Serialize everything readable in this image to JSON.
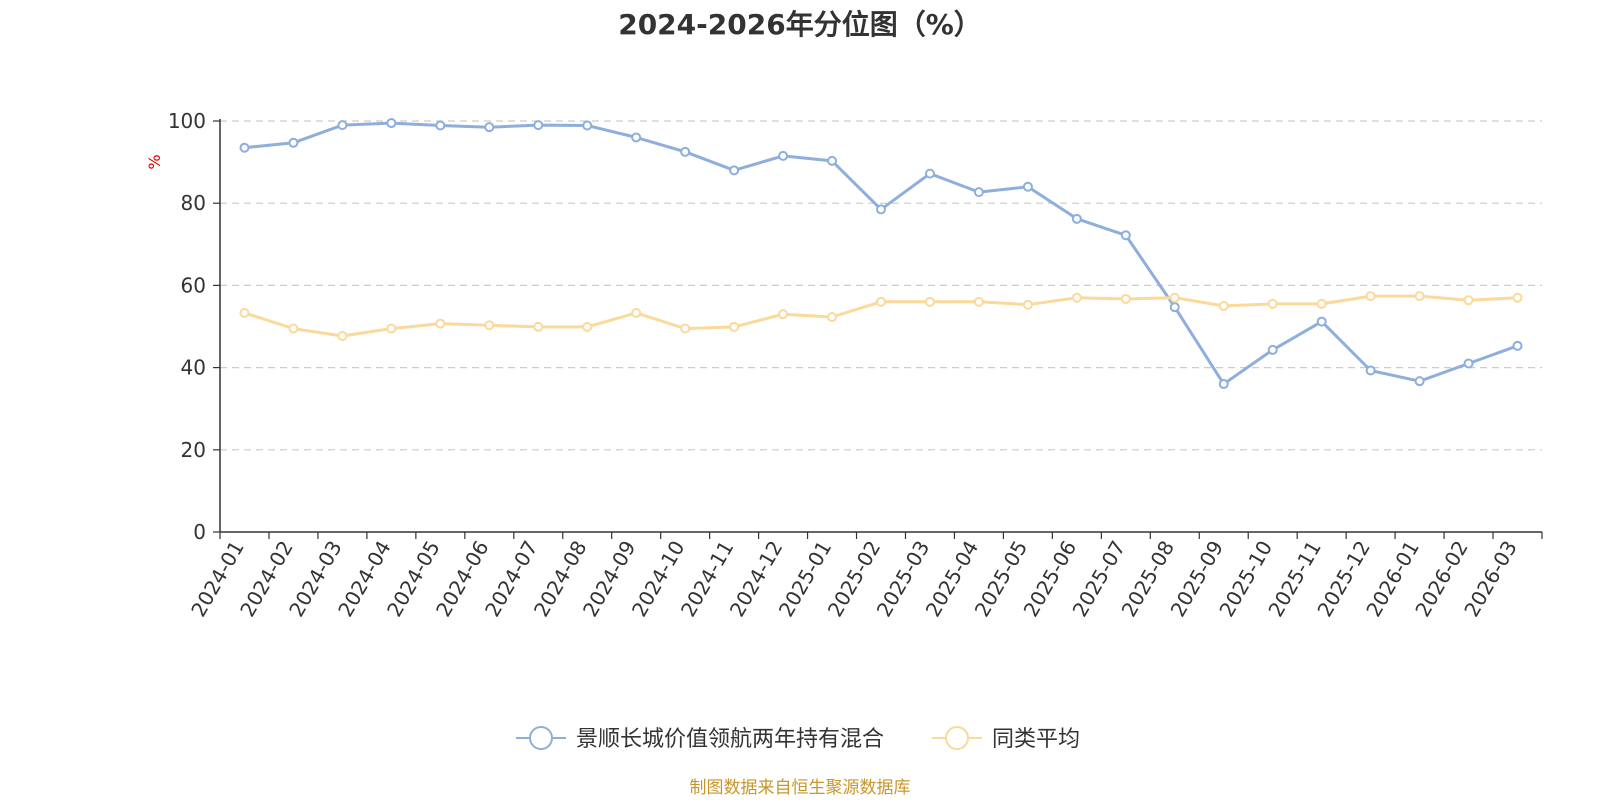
{
  "chart_data": {
    "type": "line",
    "title": "2024-2026年分位图（%）",
    "ylabel": "%",
    "xlabel": "",
    "ylim": [
      0,
      100
    ],
    "yticks": [
      0,
      20,
      40,
      60,
      80,
      100
    ],
    "grid": true,
    "legend_position": "bottom",
    "categories": [
      "2024-01",
      "2024-02",
      "2024-03",
      "2024-04",
      "2024-05",
      "2024-06",
      "2024-07",
      "2024-08",
      "2024-09",
      "2024-10",
      "2024-11",
      "2024-12",
      "2025-01",
      "2025-02",
      "2025-03",
      "2025-04",
      "2025-05",
      "2025-06",
      "2025-07",
      "2025-08",
      "2025-09",
      "2025-10",
      "2025-11",
      "2025-12",
      "2026-01",
      "2026-02",
      "2026-03"
    ],
    "series": [
      {
        "name": "景顺长城价值领航两年持有混合",
        "color": "#8eaedb",
        "values": [
          93.5,
          94.7,
          99.0,
          99.5,
          98.9,
          98.5,
          99.0,
          98.9,
          96.0,
          92.5,
          88.0,
          91.5,
          90.3,
          78.5,
          87.2,
          82.7,
          84.0,
          76.2,
          72.2,
          54.7,
          36.0,
          44.3,
          51.2,
          39.3,
          36.7,
          41.0,
          45.3
        ]
      },
      {
        "name": "同类平均",
        "color": "#fbd99a",
        "values": [
          53.3,
          49.5,
          47.7,
          49.5,
          50.7,
          50.3,
          49.9,
          49.9,
          53.3,
          49.5,
          49.9,
          53.0,
          52.3,
          56.0,
          56.0,
          56.0,
          55.3,
          57.0,
          56.7,
          57.0,
          55.0,
          55.5,
          55.5,
          57.4,
          57.4,
          56.4,
          57.0
        ]
      }
    ]
  },
  "source_text": "制图数据来自恒生聚源数据库",
  "colors": {
    "axis": "#333333",
    "grid": "#cccccc",
    "ylabel": "#e00000",
    "source": "#c8962a"
  }
}
